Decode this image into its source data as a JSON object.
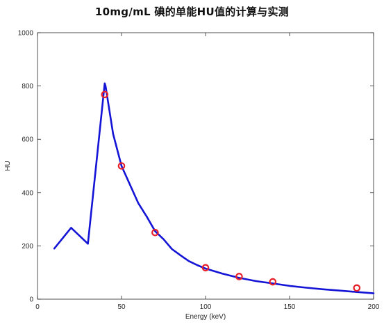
{
  "chart_data": {
    "type": "line",
    "title": "10mg/mL 碘的单能HU值的计算与实测",
    "xlabel": "Energy (keV)",
    "ylabel": "HU",
    "xlim": [
      0,
      200
    ],
    "ylim": [
      0,
      1000
    ],
    "xticks": [
      0,
      50,
      100,
      150,
      200
    ],
    "yticks": [
      0,
      200,
      400,
      600,
      800,
      1000
    ],
    "grid": false,
    "legend": "none",
    "series": [
      {
        "kind": "line",
        "color": "#1414d6",
        "x": [
          10,
          20,
          30,
          40,
          40.5,
          45,
          50,
          55,
          60,
          65,
          70,
          75,
          80,
          85,
          90,
          95,
          100,
          110,
          120,
          130,
          140,
          150,
          160,
          170,
          180,
          190,
          200
        ],
        "y": [
          190,
          268,
          208,
          810,
          800,
          620,
          500,
          430,
          360,
          310,
          255,
          225,
          188,
          165,
          143,
          128,
          115,
          96,
          80,
          68,
          59,
          50,
          43,
          37,
          32,
          27,
          22
        ]
      },
      {
        "kind": "scatter",
        "marker": "circle-open",
        "color": "#e8202a",
        "x": [
          40,
          50,
          70,
          100,
          120,
          140,
          190
        ],
        "y": [
          768,
          500,
          250,
          118,
          85,
          65,
          42
        ]
      }
    ]
  }
}
